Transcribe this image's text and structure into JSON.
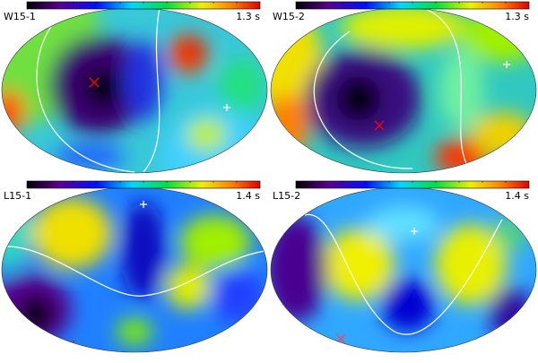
{
  "panels": [
    {
      "label": "W15-1",
      "scale": "1.3 s"
    },
    {
      "label": "W15-2",
      "scale": "1.3 s"
    },
    {
      "label": "L15-1",
      "scale": "1.4 s"
    },
    {
      "label": "L15-2",
      "scale": "1.4 s"
    }
  ]
}
